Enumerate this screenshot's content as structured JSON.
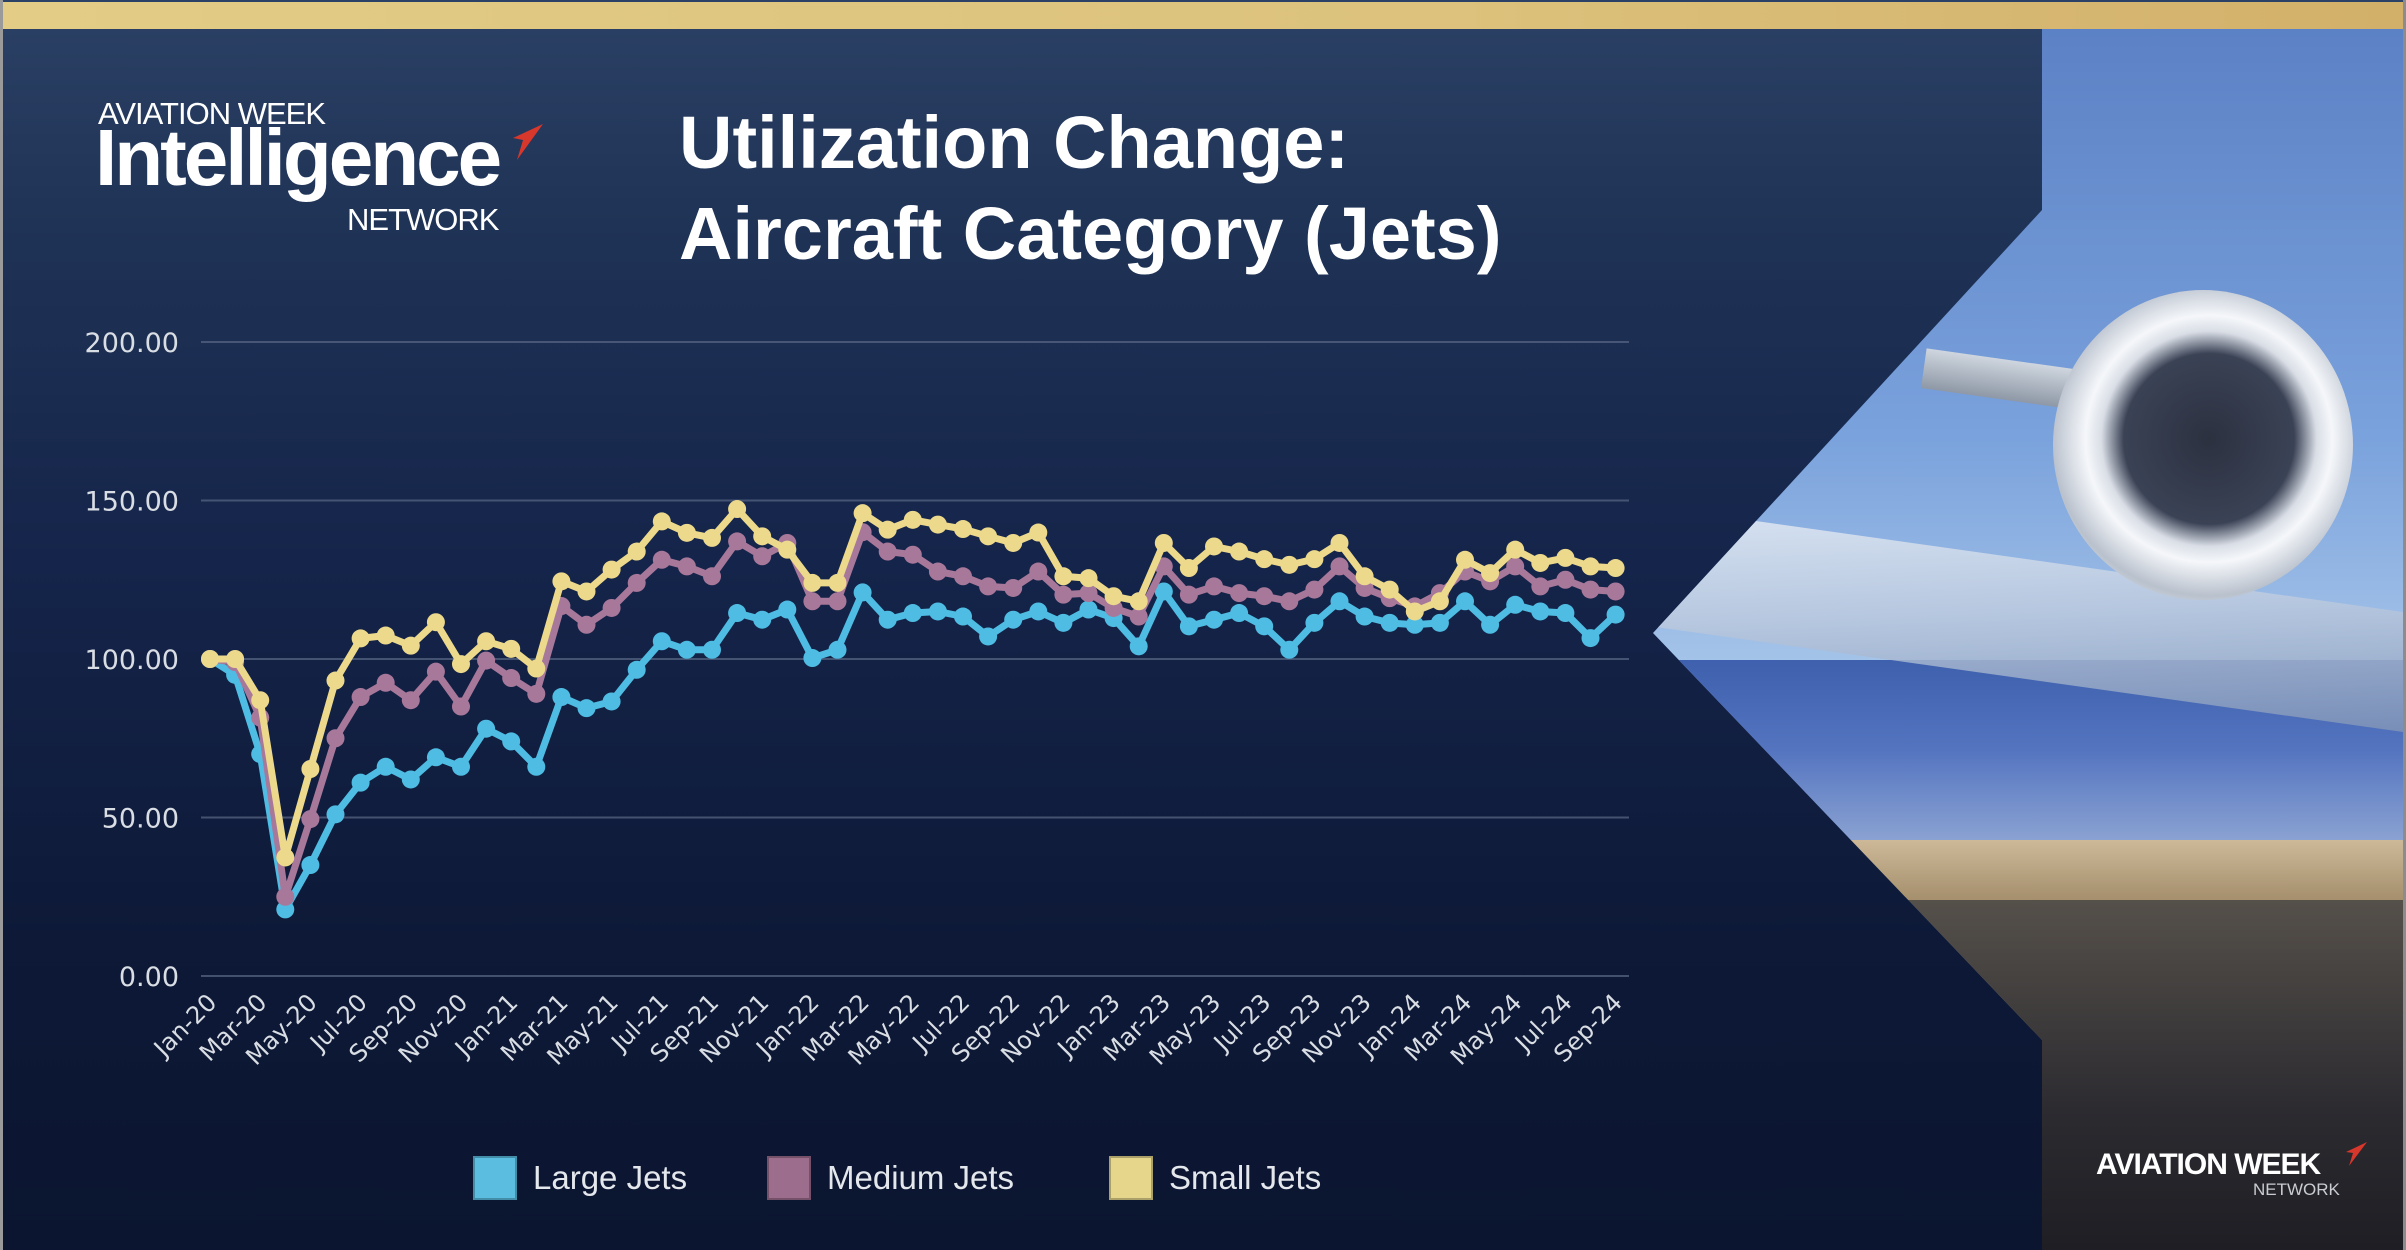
{
  "logo": {
    "line1": "AVIATION WEEK",
    "line2": "Intelligence",
    "line3": "NETWORK",
    "accent_color": "#d8372c"
  },
  "title": {
    "line1": "Utilization Change:",
    "line2": "Aircraft Category (Jets)"
  },
  "footer_logo": {
    "line1": "AVIATION WEEK",
    "line2": "NETWORK"
  },
  "colors": {
    "gold_bar": "#dcc27c",
    "background": "#14234a"
  },
  "chart_data": {
    "type": "line",
    "title": "Utilization Change: Aircraft Category (Jets)",
    "xlabel": "",
    "ylabel": "",
    "ylim": [
      0,
      200
    ],
    "yticks": [
      0,
      50,
      100,
      150,
      200
    ],
    "ytick_labels": [
      "0.00",
      "50.00",
      "100.00",
      "150.00",
      "200.00"
    ],
    "grid": true,
    "legend_position": "bottom",
    "x": [
      "Jan-20",
      "Feb-20",
      "Mar-20",
      "Apr-20",
      "May-20",
      "Jun-20",
      "Jul-20",
      "Aug-20",
      "Sep-20",
      "Oct-20",
      "Nov-20",
      "Dec-20",
      "Jan-21",
      "Feb-21",
      "Mar-21",
      "Apr-21",
      "May-21",
      "Jun-21",
      "Jul-21",
      "Aug-21",
      "Sep-21",
      "Oct-21",
      "Nov-21",
      "Dec-21",
      "Jan-22",
      "Feb-22",
      "Mar-22",
      "Apr-22",
      "May-22",
      "Jun-22",
      "Jul-22",
      "Aug-22",
      "Sep-22",
      "Oct-22",
      "Nov-22",
      "Dec-22",
      "Jan-23",
      "Feb-23",
      "Mar-23",
      "Apr-23",
      "May-23",
      "Jun-23",
      "Jul-23",
      "Aug-23",
      "Sep-23",
      "Oct-23",
      "Nov-23",
      "Dec-23",
      "Jan-24",
      "Feb-24",
      "Mar-24",
      "Apr-24",
      "May-24",
      "Jun-24",
      "Jul-24",
      "Aug-24",
      "Sep-24"
    ],
    "xtick_labels": [
      "Jan-20",
      "Mar-20",
      "May-20",
      "Jul-20",
      "Sep-20",
      "Nov-20",
      "Jan-21",
      "Mar-21",
      "May-21",
      "Jul-21",
      "Sep-21",
      "Nov-21",
      "Jan-22",
      "Mar-22",
      "May-22",
      "Jul-22",
      "Sep-22",
      "Nov-22",
      "Jan-23",
      "Mar-23",
      "May-23",
      "Jul-23",
      "Sep-23",
      "Nov-23",
      "Jan-24",
      "Mar-24",
      "May-24",
      "Jul-24",
      "Sep-24"
    ],
    "series": [
      {
        "name": "Large Jets",
        "color": "#4fbde3",
        "values": [
          100,
          95,
          70,
          21,
          35,
          51,
          61,
          66,
          62,
          69,
          66,
          78,
          74,
          66,
          88,
          84.5,
          86.6,
          96.6,
          105.6,
          102.9,
          102.9,
          114.5,
          112.4,
          115.6,
          100.3,
          102.9,
          121,
          112.4,
          114.5,
          115,
          113.4,
          107.1,
          112.4,
          115,
          111.4,
          115.6,
          112.9,
          104,
          121.3,
          110.3,
          112.4,
          114.5,
          110.3,
          102.9,
          111.4,
          118.2,
          113.4,
          111.4,
          110.8,
          111.4,
          118.2,
          110.8,
          117.1,
          115,
          114.5,
          106.6,
          114
        ]
      },
      {
        "name": "Medium Jets",
        "color": "#a8789a",
        "values": [
          100,
          99,
          81.5,
          25,
          49.5,
          75,
          88,
          92.5,
          87,
          96,
          85,
          99.5,
          94,
          89,
          116.7,
          110.8,
          116.1,
          124,
          131.3,
          129.2,
          126.1,
          137.1,
          132.4,
          136.6,
          118.2,
          118.2,
          140,
          133.9,
          132.9,
          127.6,
          126.1,
          122.9,
          122.4,
          127.6,
          120.3,
          120.8,
          116.1,
          113.4,
          129.2,
          120.3,
          122.9,
          120.8,
          119.8,
          118.2,
          121.9,
          129.2,
          122.4,
          119.2,
          116.6,
          120.8,
          127.6,
          124.5,
          129.2,
          122.9,
          125,
          121.9,
          121.3
        ]
      },
      {
        "name": "Small Jets",
        "color": "#ecd98c",
        "values": [
          100,
          100,
          87,
          37.4,
          65.3,
          93.2,
          106.5,
          107.4,
          104.2,
          111.6,
          98.4,
          105.6,
          103.2,
          97,
          124.5,
          121.3,
          128.2,
          133.9,
          143.4,
          139.8,
          138.2,
          147.3,
          138.7,
          134.5,
          124,
          124,
          146,
          140.8,
          143.9,
          142.4,
          141,
          138.7,
          136.6,
          139.9,
          126.1,
          125.5,
          119.8,
          118.2,
          136.6,
          128.7,
          135.5,
          133.9,
          131.5,
          129.7,
          131.5,
          136.6,
          126.1,
          121.9,
          115,
          118.2,
          131.3,
          127.1,
          134.5,
          130.3,
          131.9,
          129.2,
          128.7
        ]
      }
    ]
  },
  "legend": [
    {
      "label": "Large Jets",
      "color": "#5bbde0"
    },
    {
      "label": "Medium Jets",
      "color": "#9c6d8c"
    },
    {
      "label": "Small Jets",
      "color": "#e6d68c"
    }
  ]
}
